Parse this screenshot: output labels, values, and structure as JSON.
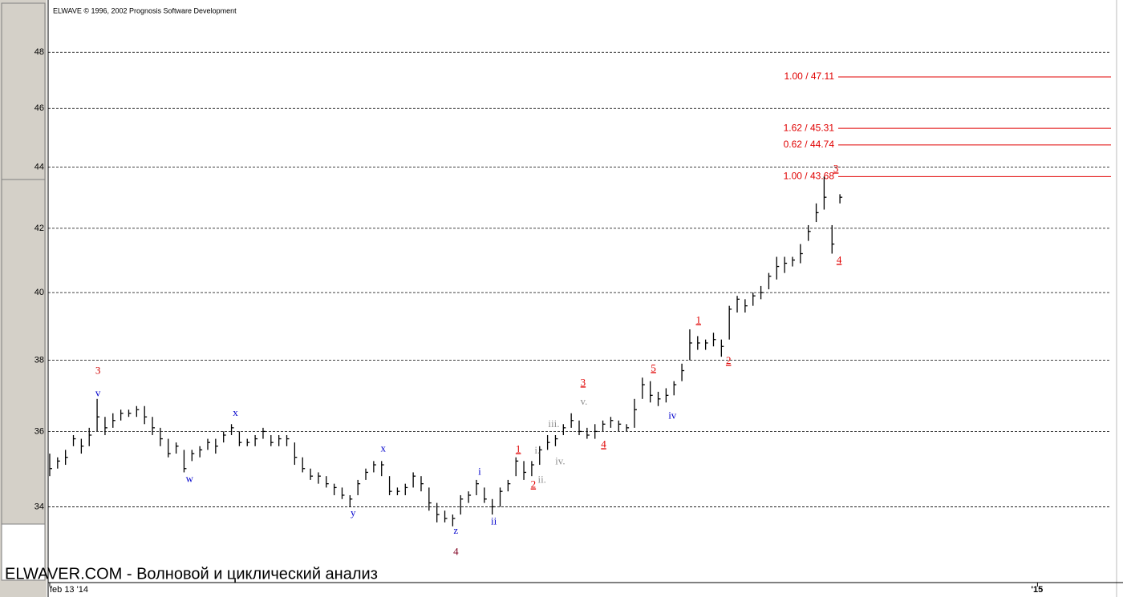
{
  "chart_data": {
    "type": "ohlc",
    "title": "ELWAVE © 1996, 2002 Prognosis Software Development",
    "caption": "ELWAVER.COM - Волновой и циклический анализ",
    "log_scale": true,
    "grid": true,
    "xlim": [
      -0.2,
      134.3
    ],
    "xticks": [
      {
        "value": 0,
        "label": "feb 13 '14"
      },
      {
        "value": 125,
        "label": "'15"
      }
    ],
    "ylim": [
      32.1,
      49.7
    ],
    "yticks": [
      34,
      36,
      38,
      40,
      42,
      44,
      46,
      48
    ],
    "x": [
      0,
      1,
      2,
      3,
      4,
      5,
      6,
      7,
      8,
      9,
      10,
      11,
      12,
      13,
      14,
      15,
      16,
      17,
      18,
      19,
      20,
      21,
      22,
      23,
      24,
      25,
      26,
      27,
      28,
      29,
      30,
      31,
      32,
      33,
      34,
      35,
      36,
      37,
      38,
      39,
      40,
      41,
      42,
      43,
      44,
      45,
      46,
      47,
      48,
      49,
      50,
      51,
      52,
      53,
      54,
      55,
      56,
      57,
      58,
      59,
      60,
      61,
      62,
      63,
      64,
      65,
      66,
      67,
      68,
      69,
      70,
      71,
      72,
      73,
      74,
      75,
      76,
      77,
      78,
      79,
      80,
      81,
      82,
      83,
      84,
      85,
      86,
      87,
      88,
      89,
      90,
      91,
      92,
      93,
      94,
      95,
      96,
      97,
      98,
      99,
      100
    ],
    "series": [
      {
        "color": "#000000",
        "high": [
          35.4,
          35.3,
          35.5,
          35.9,
          35.8,
          36.1,
          36.9,
          36.4,
          36.5,
          36.6,
          36.6,
          36.7,
          36.7,
          36.4,
          36.1,
          35.8,
          35.7,
          35.5,
          35.5,
          35.6,
          35.8,
          35.8,
          36.0,
          36.2,
          36.0,
          35.8,
          35.9,
          36.1,
          35.9,
          35.9,
          35.9,
          35.7,
          35.3,
          35.0,
          34.9,
          34.8,
          34.6,
          34.5,
          34.3,
          34.7,
          35.0,
          35.2,
          35.2,
          34.8,
          34.5,
          34.6,
          34.9,
          34.8,
          34.5,
          34.1,
          33.9,
          33.8,
          34.3,
          34.4,
          34.7,
          34.5,
          34.2,
          34.5,
          34.7,
          35.3,
          35.2,
          35.2,
          35.6,
          35.9,
          35.9,
          36.2,
          36.5,
          36.3,
          36.1,
          36.2,
          36.3,
          36.4,
          36.3,
          36.2,
          36.9,
          37.5,
          37.4,
          37.1,
          37.2,
          37.4,
          37.9,
          38.9,
          38.7,
          38.6,
          38.8,
          38.6,
          39.6,
          39.9,
          39.8,
          40.0,
          40.2,
          40.6,
          41.1,
          41.1,
          41.1,
          41.5,
          42.1,
          42.8,
          43.68,
          42.1,
          43.1
        ],
        "low": [
          34.8,
          35.0,
          35.1,
          35.6,
          35.4,
          35.6,
          36.0,
          35.9,
          36.1,
          36.3,
          36.4,
          36.4,
          36.2,
          35.9,
          35.6,
          35.3,
          35.4,
          34.9,
          35.2,
          35.3,
          35.5,
          35.4,
          35.7,
          35.9,
          35.6,
          35.6,
          35.6,
          35.8,
          35.6,
          35.6,
          35.6,
          35.1,
          34.9,
          34.7,
          34.6,
          34.5,
          34.3,
          34.2,
          34.0,
          34.3,
          34.7,
          34.9,
          34.8,
          34.3,
          34.3,
          34.3,
          34.5,
          34.4,
          33.9,
          33.6,
          33.6,
          33.5,
          33.8,
          34.1,
          34.3,
          34.1,
          33.8,
          34.0,
          34.4,
          34.8,
          34.7,
          34.8,
          35.1,
          35.5,
          35.6,
          35.9,
          36.1,
          35.9,
          35.8,
          35.8,
          36.0,
          36.1,
          36.0,
          36.0,
          36.1,
          36.9,
          36.8,
          36.7,
          36.8,
          37.0,
          37.4,
          38.0,
          38.3,
          38.3,
          38.4,
          38.1,
          38.6,
          39.4,
          39.4,
          39.6,
          39.8,
          40.1,
          40.4,
          40.6,
          40.8,
          40.9,
          41.6,
          42.2,
          42.6,
          41.2,
          42.8
        ],
        "close": [
          35.0,
          35.2,
          35.3,
          35.8,
          35.6,
          35.9,
          36.4,
          36.1,
          36.3,
          36.5,
          36.5,
          36.6,
          36.4,
          36.1,
          35.8,
          35.4,
          35.6,
          35.0,
          35.4,
          35.5,
          35.7,
          35.6,
          35.9,
          36.1,
          35.7,
          35.7,
          35.8,
          36.0,
          35.7,
          35.8,
          35.8,
          35.3,
          35.0,
          34.8,
          34.8,
          34.6,
          34.5,
          34.3,
          34.2,
          34.6,
          34.9,
          35.1,
          35.1,
          34.4,
          34.4,
          34.5,
          34.8,
          34.6,
          34.1,
          33.8,
          33.7,
          33.7,
          34.2,
          34.3,
          34.6,
          34.2,
          34.0,
          34.4,
          34.6,
          35.2,
          34.9,
          35.1,
          35.5,
          35.7,
          35.8,
          36.1,
          36.3,
          36.0,
          35.9,
          36.0,
          36.2,
          36.3,
          36.2,
          36.1,
          36.6,
          37.3,
          37.0,
          36.9,
          37.0,
          37.3,
          37.7,
          38.5,
          38.5,
          38.5,
          38.6,
          38.4,
          39.5,
          39.8,
          39.6,
          39.9,
          40.0,
          40.5,
          40.8,
          40.9,
          41.0,
          41.2,
          41.9,
          42.5,
          43.0,
          41.5,
          43.0
        ]
      }
    ],
    "annotations": [
      {
        "text": "3",
        "x": 6.1,
        "y": 37.68,
        "color": "#d00000",
        "underline": false
      },
      {
        "text": "v",
        "x": 6.1,
        "y": 37.04,
        "color": "#0000cc",
        "underline": false
      },
      {
        "text": "w",
        "x": 17.7,
        "y": 34.71,
        "color": "#0000cc",
        "underline": false
      },
      {
        "text": "x",
        "x": 23.5,
        "y": 36.49,
        "color": "#0000cc",
        "underline": false
      },
      {
        "text": "y",
        "x": 38.4,
        "y": 33.82,
        "color": "#0000cc",
        "underline": false
      },
      {
        "text": "x",
        "x": 42.2,
        "y": 35.52,
        "color": "#0000cc",
        "underline": false
      },
      {
        "text": "z",
        "x": 51.4,
        "y": 33.37,
        "color": "#0000cc",
        "underline": false
      },
      {
        "text": "4",
        "x": 51.4,
        "y": 32.84,
        "color": "#800020",
        "underline": false
      },
      {
        "text": "i",
        "x": 54.4,
        "y": 34.9,
        "color": "#0000cc",
        "underline": false
      },
      {
        "text": "ii",
        "x": 56.2,
        "y": 33.61,
        "color": "#0000cc",
        "underline": false
      },
      {
        "text": "1",
        "x": 59.3,
        "y": 35.5,
        "color": "#e00000",
        "underline": true
      },
      {
        "text": "2",
        "x": 61.2,
        "y": 34.56,
        "color": "#e00000",
        "underline": true
      },
      {
        "text": "i.",
        "x": 61.7,
        "y": 35.47,
        "color": "#909090",
        "underline": false
      },
      {
        "text": "ii.",
        "x": 62.3,
        "y": 34.69,
        "color": "#909090",
        "underline": false
      },
      {
        "text": "iii.",
        "x": 63.8,
        "y": 36.18,
        "color": "#909090",
        "underline": false
      },
      {
        "text": "iv.",
        "x": 64.6,
        "y": 35.18,
        "color": "#909090",
        "underline": false
      },
      {
        "text": "3",
        "x": 67.5,
        "y": 37.34,
        "color": "#e00000",
        "underline": true
      },
      {
        "text": "v.",
        "x": 67.6,
        "y": 36.8,
        "color": "#909090",
        "underline": false
      },
      {
        "text": "4",
        "x": 70.1,
        "y": 35.63,
        "color": "#e00000",
        "underline": true
      },
      {
        "text": "5",
        "x": 76.4,
        "y": 37.75,
        "color": "#e00000",
        "underline": true
      },
      {
        "text": "iv",
        "x": 78.8,
        "y": 36.42,
        "color": "#0000cc",
        "underline": false
      },
      {
        "text": "1",
        "x": 82.1,
        "y": 39.15,
        "color": "#e00000",
        "underline": true
      },
      {
        "text": "2",
        "x": 85.9,
        "y": 37.96,
        "color": "#e00000",
        "underline": true
      },
      {
        "text": "3",
        "x": 99.5,
        "y": 43.92,
        "color": "#e00000",
        "underline": true
      },
      {
        "text": "4",
        "x": 99.9,
        "y": 40.98,
        "color": "#e00000",
        "underline": true
      }
    ],
    "levels": [
      {
        "label": "1.00 / 47.11",
        "value": 47.11,
        "color": "#e00000"
      },
      {
        "label": "1.62 / 45.31",
        "value": 45.31,
        "color": "#e00000"
      },
      {
        "label": "0.62 / 44.74",
        "value": 44.74,
        "color": "#e00000"
      },
      {
        "label": "1.00 / 43.68",
        "value": 43.68,
        "color": "#e00000"
      }
    ]
  }
}
